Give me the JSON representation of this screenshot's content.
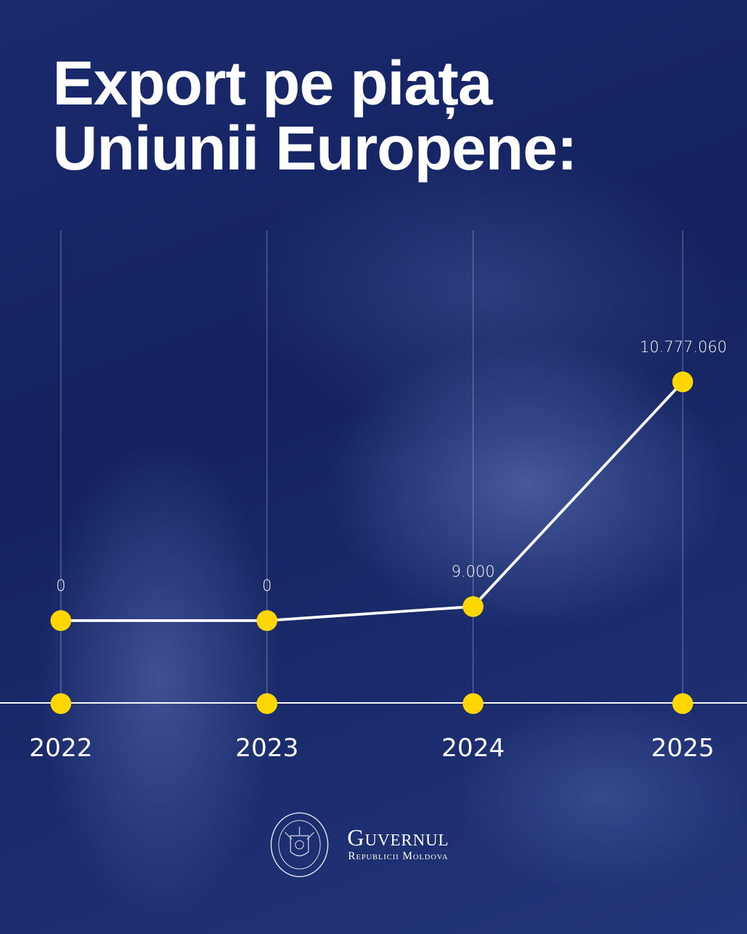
{
  "title_lines": [
    "Export pe piața",
    "Uniunii Europene:"
  ],
  "chart_data": {
    "type": "line",
    "title": "Export pe piața Uniunii Europene:",
    "categories": [
      "2022",
      "2023",
      "2024",
      "2025"
    ],
    "values": [
      0,
      0,
      9000,
      10777060
    ],
    "data_labels": [
      "0",
      "0",
      "9.000",
      "10.777.060"
    ],
    "xlabel": "",
    "ylabel": "",
    "grid": "vertical lines at each year",
    "axis_scale": "non-linear (stylized)",
    "colors": {
      "line": "#ffffff",
      "marker": "#ffd600",
      "grid": "#aab4e0"
    }
  },
  "logo": {
    "name": "Guvernul",
    "subtitle": "Republicii Moldova",
    "seal_text": "Guvernul Republicii Moldova"
  }
}
